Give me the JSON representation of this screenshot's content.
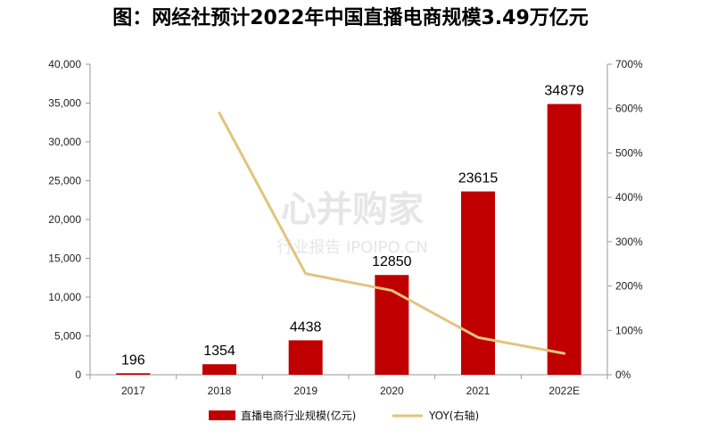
{
  "page_title": "图：网经社预计2022年中国直播电商规模3.49万亿元",
  "watermark": {
    "line1": "心并购家",
    "line2": "行业报告 IPOIPO.CN"
  },
  "colors": {
    "bar": "#c00000",
    "line": "#e2c47c"
  },
  "chart_data": {
    "type": "bar+line",
    "categories": [
      "2017",
      "2018",
      "2019",
      "2020",
      "2021",
      "2022E"
    ],
    "series": [
      {
        "name": "直播电商行业规模(亿元)",
        "type": "bar",
        "axis": "left",
        "values": [
          196,
          1354,
          4438,
          12850,
          23615,
          34879
        ],
        "labels": [
          "196",
          "1354",
          "4438",
          "12850",
          "23615",
          "34879"
        ]
      },
      {
        "name": "YOY(右轴)",
        "type": "line",
        "axis": "right",
        "values": [
          null,
          590,
          228,
          190,
          84,
          48
        ]
      }
    ],
    "left_axis": {
      "min": 0,
      "max": 40000,
      "ticks": [
        "0",
        "5,000",
        "10,000",
        "15,000",
        "20,000",
        "25,000",
        "30,000",
        "35,000",
        "40,000"
      ]
    },
    "right_axis": {
      "min": 0,
      "max": 700,
      "ticks": [
        "0%",
        "100%",
        "200%",
        "300%",
        "400%",
        "500%",
        "600%",
        "700%"
      ]
    },
    "grid": false,
    "legend_position": "bottom"
  }
}
